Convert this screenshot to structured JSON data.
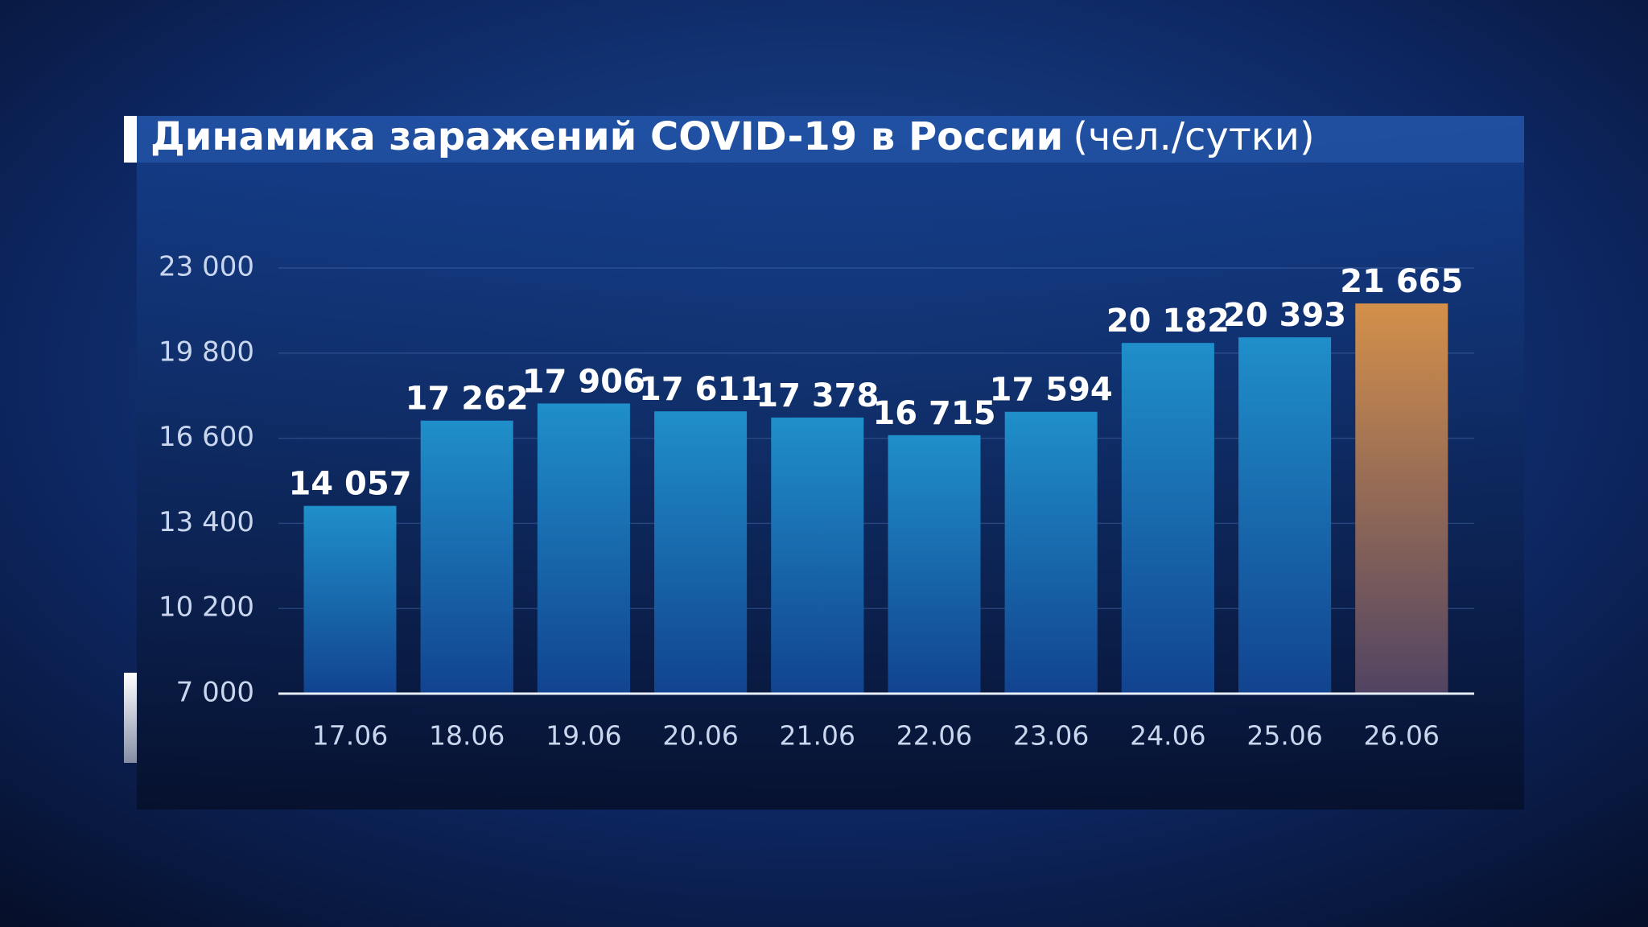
{
  "chart_data": {
    "type": "bar",
    "title": "Динамика заражений COVID-19 в России",
    "unit": "(чел./сутки)",
    "categories": [
      "17.06",
      "18.06",
      "19.06",
      "20.06",
      "21.06",
      "22.06",
      "23.06",
      "24.06",
      "25.06",
      "26.06"
    ],
    "values": [
      14057,
      17262,
      17906,
      17611,
      17378,
      16715,
      17594,
      20182,
      20393,
      21665
    ],
    "value_labels": [
      "14 057",
      "17 262",
      "17 906",
      "17 611",
      "17 378",
      "16 715",
      "17 594",
      "20 182",
      "20 393",
      "21 665"
    ],
    "colors": [
      "#1f8fca",
      "#1f8fca",
      "#1f8fca",
      "#1f8fca",
      "#1f8fca",
      "#1f8fca",
      "#1f8fca",
      "#1f8fca",
      "#1f8fca",
      "#d4904a"
    ],
    "ylim": [
      7000,
      23000
    ],
    "yticks": [
      {
        "value": 7000,
        "label": "7 000"
      },
      {
        "value": 10200,
        "label": "10 200"
      },
      {
        "value": 13400,
        "label": "13 400"
      },
      {
        "value": 16600,
        "label": "16 600"
      },
      {
        "value": 19800,
        "label": "19 800"
      },
      {
        "value": 23000,
        "label": "23 000"
      }
    ],
    "grid": true
  }
}
